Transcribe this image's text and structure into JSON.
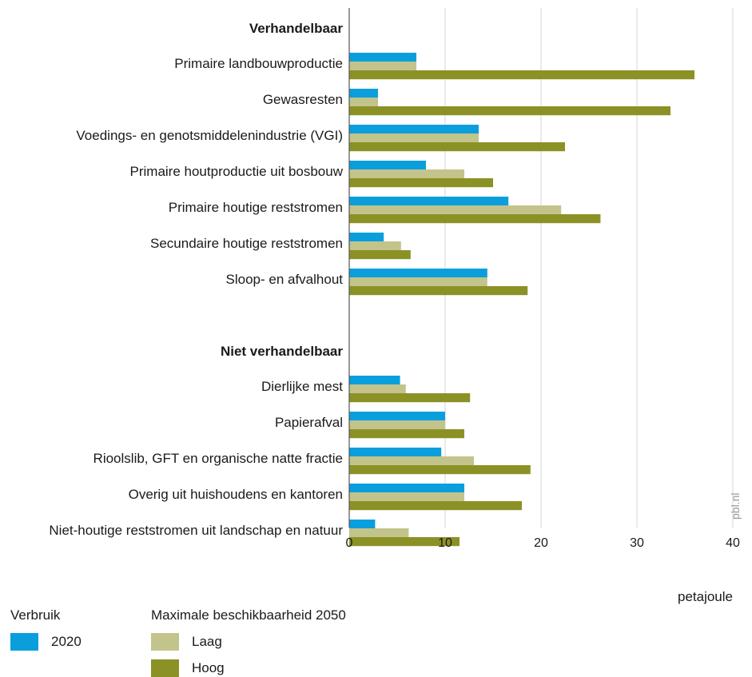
{
  "chart_data": {
    "type": "bar",
    "orientation": "horizontal",
    "groups": [
      {
        "label": "Verhandelbaar",
        "categories": [
          "Primaire landbouwproductie",
          "Gewasresten",
          "Voedings- en genotsmiddelenindustrie (VGI)",
          "Primaire houtproductie uit bosbouw",
          "Primaire houtige reststromen",
          "Secundaire houtige reststromen",
          "Sloop- en afvalhout"
        ]
      },
      {
        "label": "Niet verhandelbaar",
        "categories": [
          "Dierlijke mest",
          "Papierafval",
          "Rioolslib, GFT en organische natte fractie",
          "Overig uit huishoudens en kantoren",
          "Niet-houtige reststromen uit landschap en natuur"
        ]
      }
    ],
    "series": [
      {
        "name": "2020",
        "color": "#0a9fdc",
        "values": [
          7,
          3,
          13.5,
          8,
          16.6,
          3.6,
          14.4,
          5.3,
          10,
          9.6,
          12,
          2.7
        ]
      },
      {
        "name": "Laag",
        "color": "#c3c48b",
        "values": [
          7,
          3,
          13.5,
          12,
          22.1,
          5.4,
          14.4,
          5.9,
          10,
          13,
          12,
          6.2
        ]
      },
      {
        "name": "Hoog",
        "color": "#8c9126",
        "values": [
          36,
          33.5,
          22.5,
          15,
          26.2,
          6.4,
          18.6,
          12.6,
          12,
          18.9,
          18,
          11.5
        ]
      }
    ],
    "xlim": [
      0,
      40
    ],
    "xticks": [
      0,
      10,
      20,
      30,
      40
    ],
    "xlabel": "petajoule",
    "grid": true
  },
  "credit": "pbl.nl",
  "legend": {
    "group1_title": "Verbruik",
    "group2_title": "Maximale beschikbaarheid 2050",
    "items": [
      "2020",
      "Laag",
      "Hoog"
    ]
  }
}
